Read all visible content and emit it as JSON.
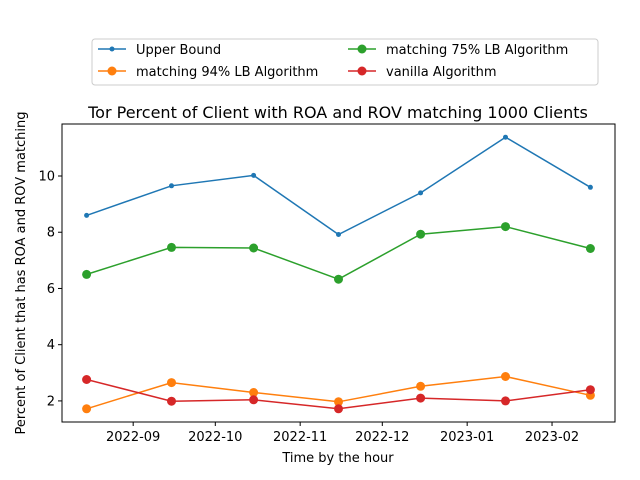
{
  "chart_data": {
    "type": "line",
    "title": "Tor Percent of Client with ROA and ROV matching 1000 Clients",
    "xlabel": "Time by the hour",
    "ylabel": "Percent of Client that has ROA and ROV matching",
    "x": [
      "2022-08-15",
      "2022-09-15",
      "2022-10-15",
      "2022-11-15",
      "2022-12-15",
      "2023-01-15",
      "2023-02-15"
    ],
    "x_ticks": [
      "2022-09",
      "2022-10",
      "2022-11",
      "2022-12",
      "2023-01",
      "2023-02"
    ],
    "x_tick_dates": [
      "2022-09-01",
      "2022-10-01",
      "2022-11-01",
      "2022-12-01",
      "2023-01-01",
      "2023-02-01"
    ],
    "xlim": [
      "2022-08-06",
      "2023-02-24"
    ],
    "y_ticks": [
      2,
      4,
      6,
      8,
      10
    ],
    "ylim": [
      1.25,
      11.85
    ],
    "grid": false,
    "legend_position": "top, outside plot, two columns",
    "series": [
      {
        "name": "Upper Bound",
        "color": "#1f77b4",
        "marker": "small-dot",
        "values": [
          8.6,
          9.65,
          10.02,
          7.92,
          9.4,
          11.38,
          9.6
        ]
      },
      {
        "name": "matching 94% LB Algorithm",
        "color": "#ff7f0e",
        "marker": "dot",
        "values": [
          1.72,
          2.65,
          2.3,
          1.97,
          2.52,
          2.87,
          2.2
        ]
      },
      {
        "name": "matching 75% LB Algorithm",
        "color": "#2ca02c",
        "marker": "dot",
        "values": [
          6.5,
          7.46,
          7.44,
          6.33,
          7.93,
          8.2,
          7.42
        ]
      },
      {
        "name": "vanilla Algorithm",
        "color": "#d62728",
        "marker": "dot",
        "values": [
          2.76,
          1.99,
          2.04,
          1.72,
          2.1,
          2.0,
          2.4
        ]
      }
    ]
  }
}
